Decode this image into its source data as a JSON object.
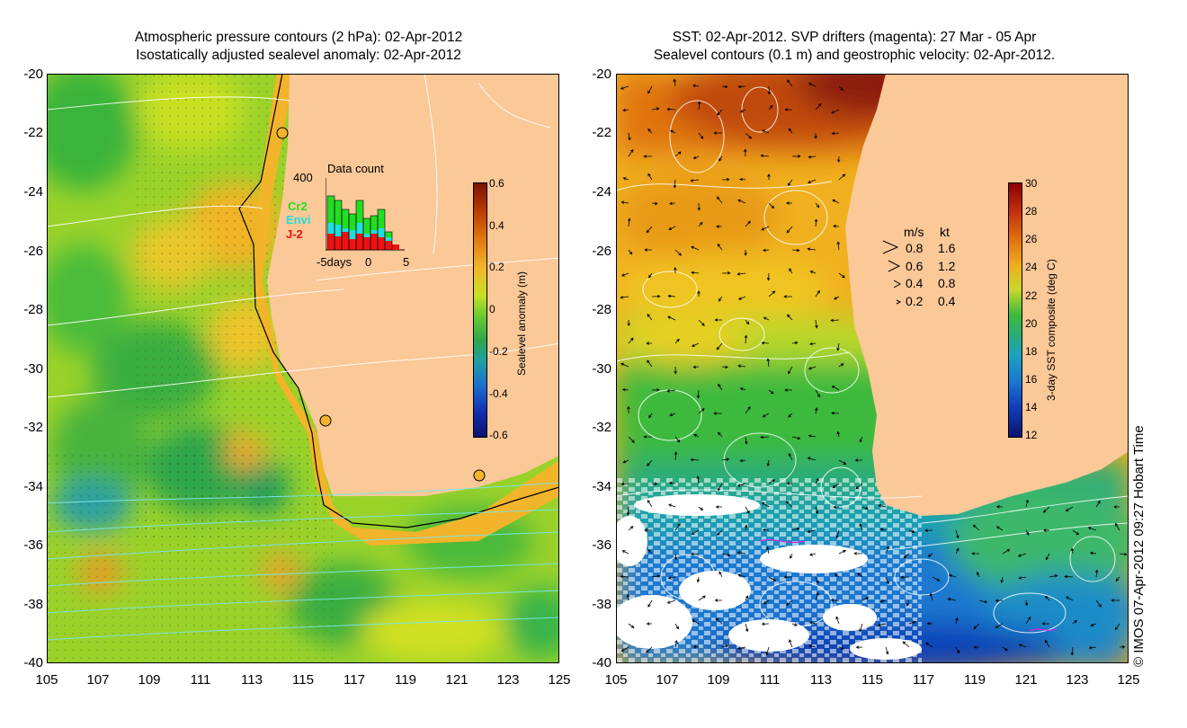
{
  "left_panel": {
    "title_line1": "Atmospheric pressure contours (2 hPa): 02-Apr-2012",
    "title_line2": "Isostatically adjusted sealevel anomaly: 02-Apr-2012",
    "y_ticks": [
      "-20",
      "-22",
      "-24",
      "-26",
      "-28",
      "-30",
      "-32",
      "-34",
      "-36",
      "-38",
      "-40"
    ],
    "x_ticks": [
      "105",
      "107",
      "109",
      "111",
      "113",
      "115",
      "117",
      "119",
      "121",
      "123",
      "125"
    ],
    "colorbar": {
      "title": "Sealevel anomaly (m)",
      "labels": [
        "0.6",
        "0.4",
        "0.2",
        "0",
        "-0.2",
        "-0.4",
        "-0.6"
      ]
    },
    "data_count": {
      "title": "Data count",
      "max_label": "400",
      "axis_left": "-5days",
      "axis_mid": "0",
      "axis_right": "5",
      "legend": [
        {
          "name": "Cr2",
          "color": "#22dd22"
        },
        {
          "name": "Envi",
          "color": "#22dddd"
        },
        {
          "name": "J-2",
          "color": "#ee1111"
        }
      ]
    }
  },
  "right_panel": {
    "title_line1": "SST: 02-Apr-2012. SVP drifters (magenta): 27 Mar - 05 Apr",
    "title_line2": "Sealevel contours (0.1 m) and geostrophic velocity: 02-Apr-2012.",
    "y_ticks": [
      "-20",
      "-22",
      "-24",
      "-26",
      "-28",
      "-30",
      "-32",
      "-34",
      "-36",
      "-38",
      "-40"
    ],
    "x_ticks": [
      "105",
      "107",
      "109",
      "111",
      "113",
      "115",
      "117",
      "119",
      "121",
      "123",
      "125"
    ],
    "colorbar": {
      "title": "3-day SST composite (deg C)",
      "labels": [
        "30",
        "28",
        "26",
        "24",
        "22",
        "20",
        "18",
        "16",
        "14",
        "12"
      ]
    },
    "velocity_legend": {
      "header_ms": "m/s",
      "header_kt": "kt",
      "rows": [
        {
          "ms": "0.8",
          "kt": "1.6"
        },
        {
          "ms": "0.6",
          "kt": "1.2"
        },
        {
          "ms": "0.4",
          "kt": "0.8"
        },
        {
          "ms": "0.2",
          "kt": "0.4"
        }
      ]
    }
  },
  "credit": "© IMOS 07-Apr-2012 09:27 Hobart Time",
  "colors": {
    "land": "#fbc898",
    "sla_high": "#7a1400",
    "sst_high": "#8b0000",
    "sst_low": "#0a1a8c"
  }
}
